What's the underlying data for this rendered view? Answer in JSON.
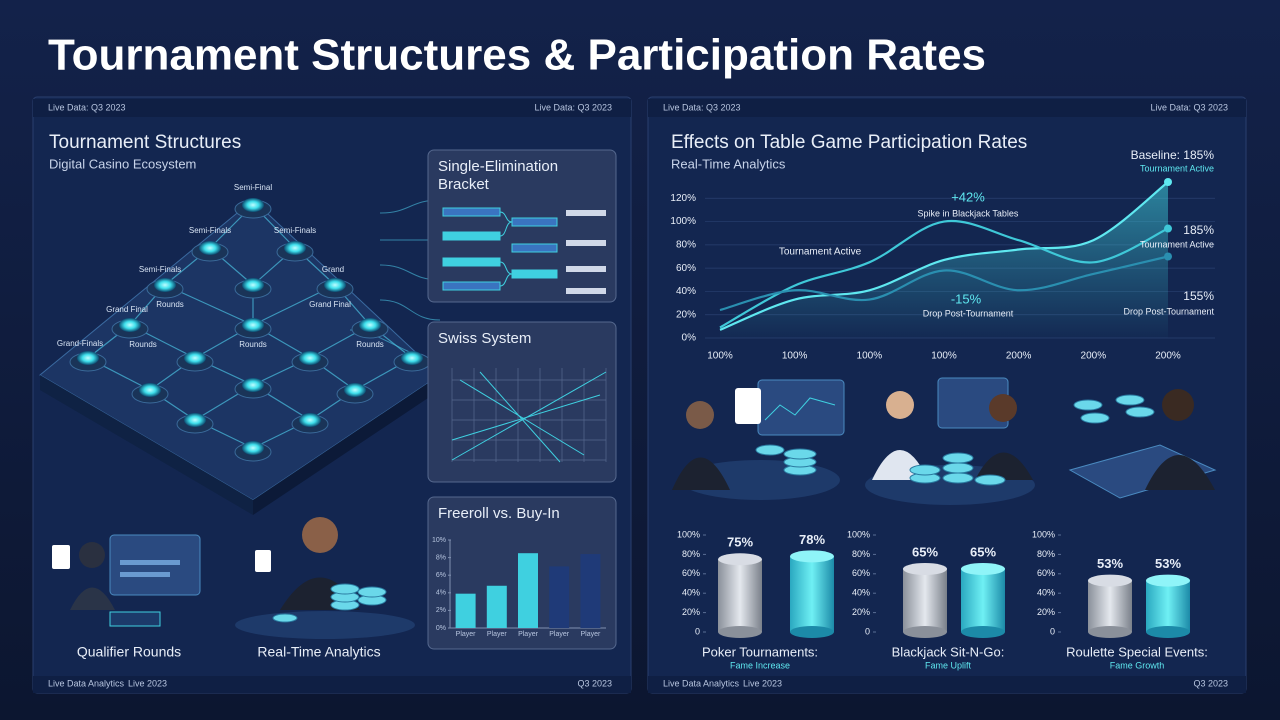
{
  "header": {
    "title": "Tournament Structures & Participation Rates"
  },
  "left_panel": {
    "top_bar": {
      "left": "Live Data: Q3 2023",
      "right": "Live Data: Q3 2023"
    },
    "title": "Tournament Structures",
    "subtitle": "Digital Casino Ecosystem",
    "node_labels": [
      "Semi-Final",
      "Semi-Finals",
      "Semi-Finals",
      "Semi-Finals",
      "Grand",
      "Grand Final",
      "Rounds",
      "Grand Final",
      "Grand-Finals",
      "Rounds",
      "Rounds",
      "Rounds"
    ],
    "cards": [
      {
        "title": "Single-Elimination Bracket"
      },
      {
        "title": "Swiss System"
      }
    ],
    "captions": [
      "Qualifier Rounds",
      "Real-Time Analytics"
    ],
    "footer": {
      "left": "Live Data Analytics",
      "middle": "Live 2023",
      "right": "Q3 2023"
    }
  },
  "right_panel": {
    "top_bar": {
      "left": "Live Data: Q3 2023",
      "right": "Live Data: Q3 2023"
    },
    "footer": {
      "left": "Live Data Analytics",
      "middle": "Live 2023",
      "right": "Q3 2023"
    }
  },
  "chart_data": [
    {
      "type": "bar",
      "title": "Freeroll vs. Buy-In",
      "categories": [
        "Player",
        "Player",
        "Player",
        "Player",
        "Player"
      ],
      "values": [
        3.9,
        4.8,
        8.5,
        7.0,
        8.4
      ],
      "colors": [
        "#3fd0e0",
        "#3fd0e0",
        "#3fd0e0",
        "#1f3a78",
        "#1f3a78"
      ],
      "ylim": [
        0,
        10
      ],
      "yticks": [
        {
          "value": 0,
          "label": "0%"
        },
        {
          "value": 2,
          "label": "2%"
        },
        {
          "value": 4,
          "label": "4%"
        },
        {
          "value": 6,
          "label": "6%"
        },
        {
          "value": 8,
          "label": "8%"
        },
        {
          "value": 10,
          "label": "10%"
        }
      ]
    },
    {
      "type": "line",
      "title": "Effects on Table Game Participation Rates",
      "subtitle": "Real-Time Analytics",
      "categories": [
        "100%",
        "100%",
        "100%",
        "100%",
        "200%",
        "200%",
        "200%"
      ],
      "series": [
        {
          "color": "#5fe8f0",
          "values": [
            7,
            33,
            41,
            67,
            76,
            84,
            134
          ]
        },
        {
          "color": "#3fc8d8",
          "values": [
            9,
            45,
            65,
            100,
            84,
            65,
            94
          ]
        },
        {
          "color": "#2a8fb0",
          "values": [
            24,
            41,
            33,
            58,
            41,
            55,
            70
          ]
        }
      ],
      "ylim": [
        0,
        140
      ],
      "yticks": [
        {
          "value": 0,
          "label": "0%"
        },
        {
          "value": 20,
          "label": "20%"
        },
        {
          "value": 40,
          "label": "40%"
        },
        {
          "value": 60,
          "label": "60%"
        },
        {
          "value": 80,
          "label": "80%"
        },
        {
          "value": 100,
          "label": "100%"
        },
        {
          "value": 120,
          "label": "120%"
        }
      ],
      "grid": true,
      "annotations": [
        "+42%",
        "Spike in Blackjack Tables",
        "Tournament Active",
        "-15%",
        "Drop Post-Tournament",
        "Baseline: 185%",
        "Tournament Active",
        "185%",
        "Tournament Active",
        "155%",
        "Drop Post-Tournament"
      ]
    },
    {
      "type": "bar",
      "title": "Poker Tournaments:",
      "subtitle": "Fame Increase",
      "categories": [
        null,
        null
      ],
      "values": [
        75,
        78
      ],
      "value_labels": [
        "75%",
        "78%"
      ],
      "colors": [
        "#b8bec8",
        "#3fd0dc"
      ],
      "ylim": [
        0,
        100
      ],
      "yticks": [
        0,
        {
          "value": 20,
          "label": "20%"
        },
        {
          "value": 40,
          "label": "40%"
        },
        {
          "value": 60,
          "label": "60%"
        },
        {
          "value": 80,
          "label": "80%"
        },
        {
          "value": 100,
          "label": "100%"
        }
      ]
    },
    {
      "type": "bar",
      "title": "Blackjack Sit-N-Go:",
      "subtitle": "Fame Uplift",
      "categories": [
        null,
        null
      ],
      "values": [
        65,
        65
      ],
      "value_labels": [
        "65%",
        "65%"
      ],
      "colors": [
        "#b8bec8",
        "#3fd0dc"
      ],
      "ylim": [
        0,
        100
      ],
      "yticks": [
        0,
        {
          "value": 20,
          "label": "20%"
        },
        {
          "value": 40,
          "label": "40%"
        },
        {
          "value": 60,
          "label": "60%"
        },
        {
          "value": 80,
          "label": "80%"
        },
        {
          "value": 100,
          "label": "100%"
        }
      ]
    },
    {
      "type": "bar",
      "title": "Roulette Special Events:",
      "subtitle": "Fame Growth",
      "categories": [
        null,
        null
      ],
      "values": [
        53,
        53
      ],
      "value_labels": [
        "53%",
        "53%"
      ],
      "colors": [
        "#b8bec8",
        "#3fd0dc"
      ],
      "ylim": [
        0,
        100
      ],
      "yticks": [
        0,
        {
          "value": 20,
          "label": "20%"
        },
        {
          "value": 40,
          "label": "40%"
        },
        {
          "value": 60,
          "label": "60%"
        },
        {
          "value": 80,
          "label": "80%"
        },
        {
          "value": 100,
          "label": "100%"
        }
      ]
    }
  ]
}
